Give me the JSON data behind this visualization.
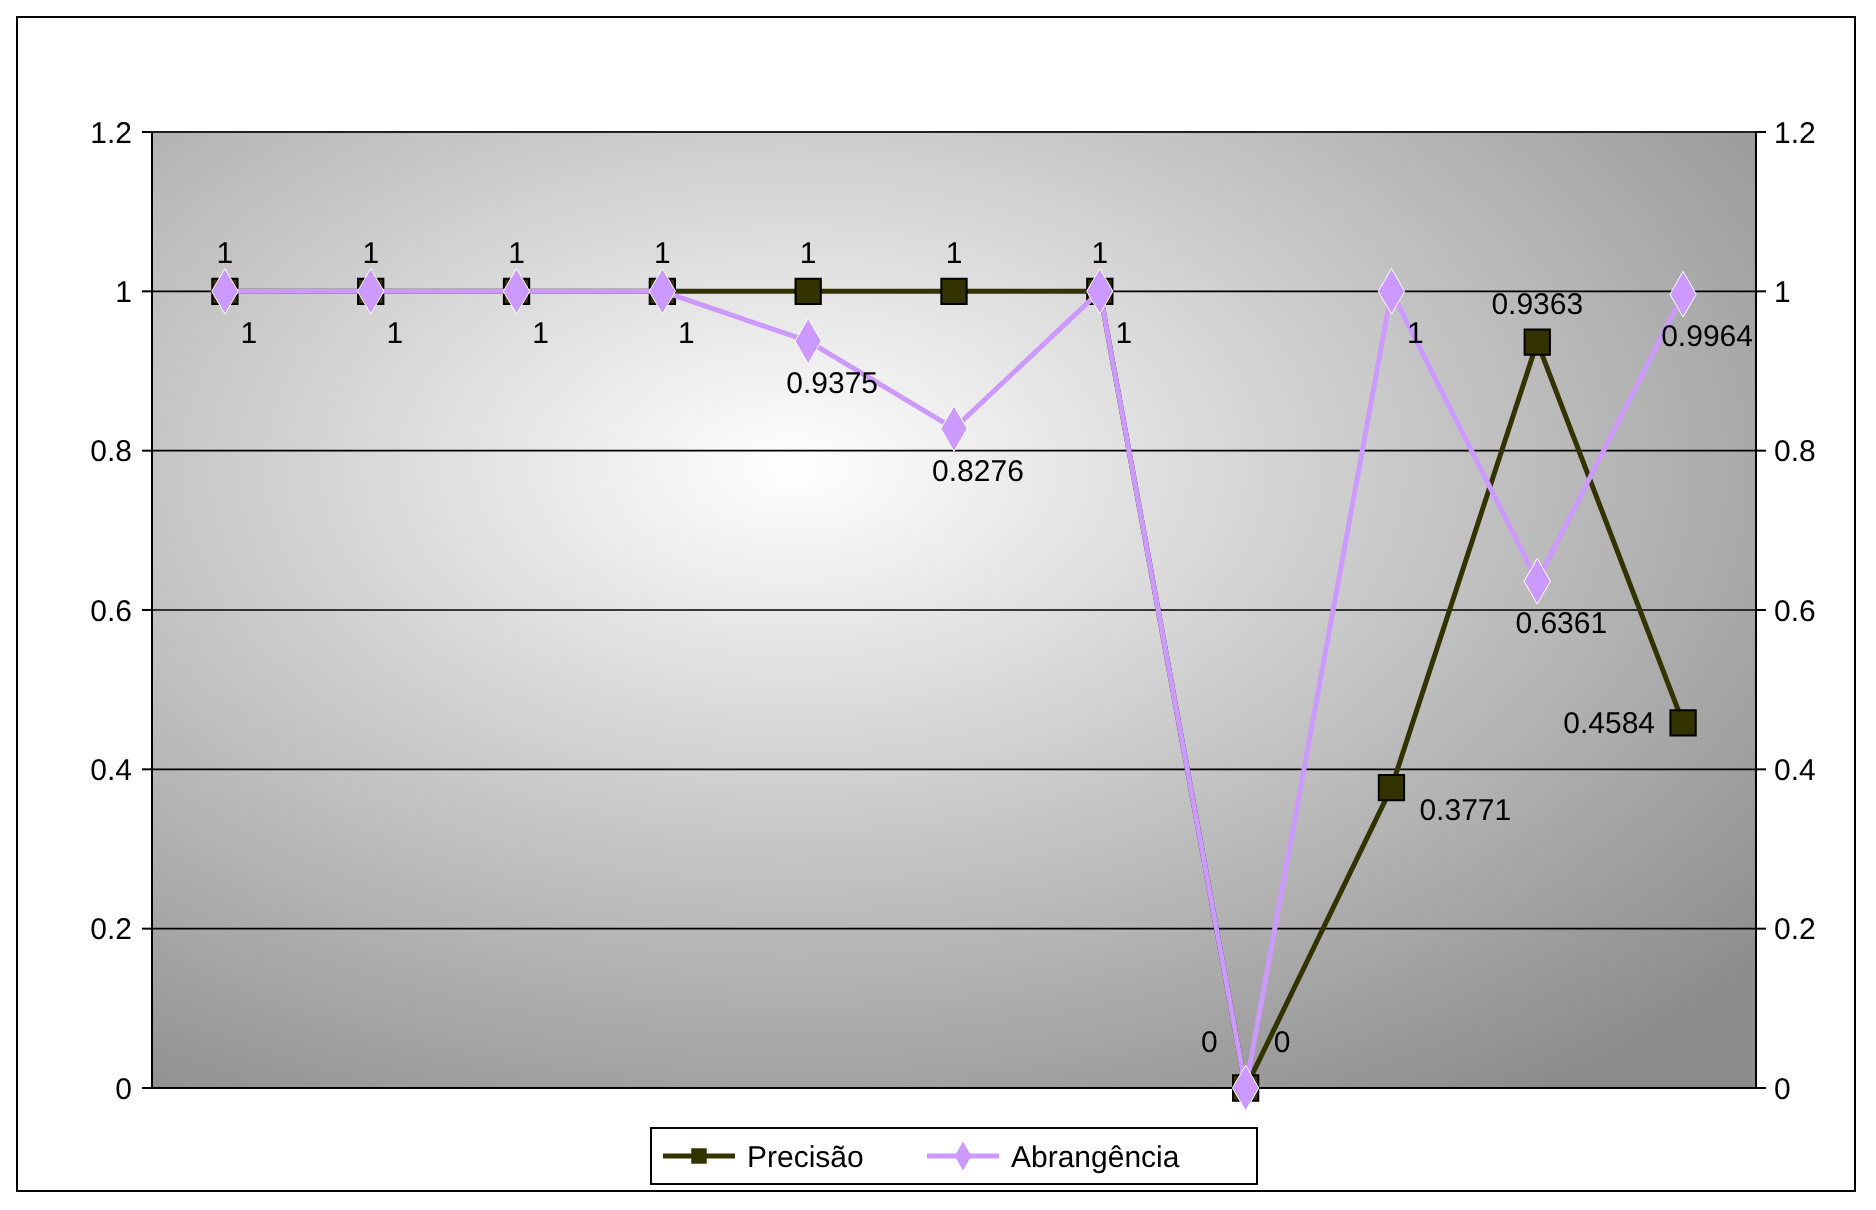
{
  "chart_data": {
    "type": "line",
    "categories": [
      null,
      null,
      null,
      null,
      null,
      null,
      null,
      null,
      null,
      null,
      null
    ],
    "series": [
      {
        "name": "Precisão",
        "color": "#333300",
        "marker": "square",
        "values": [
          1,
          1,
          1,
          1,
          1,
          1,
          1,
          0,
          0.3771,
          0.9363,
          0.4584
        ]
      },
      {
        "name": "Abrangência",
        "color": "#cc99ff",
        "marker": "diamond",
        "values": [
          1,
          1,
          1,
          1,
          0.9375,
          0.8276,
          1,
          0,
          1,
          0.6361,
          0.9964
        ]
      }
    ],
    "ylim": [
      0,
      1.2
    ],
    "yticks": [
      0,
      0.2,
      0.4,
      0.6,
      0.8,
      1,
      1.2
    ],
    "y2lim": [
      0,
      1.2
    ],
    "y2ticks": [
      0,
      0.2,
      0.4,
      0.6,
      0.8,
      1,
      1.2
    ],
    "grid": "y",
    "legend": "bottom",
    "data_labels": true
  }
}
